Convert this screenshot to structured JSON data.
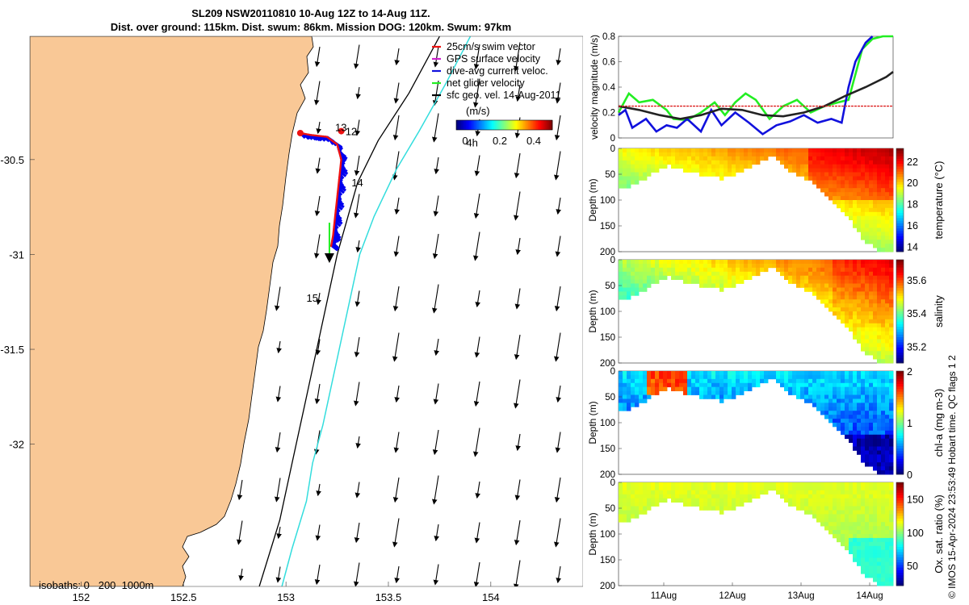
{
  "title": {
    "line1": "SL209 NSW20110810 10-Aug 12Z to 14-Aug 11Z.",
    "line2": "Dist. over ground: 115km. Dist. swum: 86km. Mission DOG: 120km. Swum: 97km"
  },
  "credit": "© IMOS 15-Apr-2024 23:53:49 Hobart time. QC flags 1  2",
  "colors": {
    "land": "#f9c896",
    "track": "#0000ee",
    "track_red": "#ee1111",
    "isobath_200": "#000000",
    "isobath_1000": "#33dddd",
    "series_green": "#22ee22",
    "series_blue": "#1111dd",
    "series_black": "#222222",
    "series_red": "#dd2222"
  },
  "chart_data": [
    {
      "type": "scatter",
      "name": "map",
      "xlim": [
        151.75,
        154.45
      ],
      "ylim": [
        -32.75,
        -29.85
      ],
      "x_ticks": [
        152,
        152.5,
        153,
        153.5,
        154
      ],
      "x_tick_labels": [
        "152",
        "152.5",
        "153",
        "153.5",
        "154"
      ],
      "y_ticks": [
        -30.5,
        -31,
        -31.5,
        -32
      ],
      "y_tick_labels": [
        "-30.5",
        "-31",
        "-31.5",
        "-32"
      ],
      "legend": {
        "placement": "top-right",
        "entries": [
          {
            "label": "25cm/s swim vector",
            "color": "#ee1111"
          },
          {
            "label": "GPS surface velocity",
            "color": "#cc22cc"
          },
          {
            "label": "dive-avg current veloc.",
            "color": "#1111dd"
          },
          {
            "label": "net glider velocity",
            "color": "#22ee22"
          },
          {
            "label": "sfc geo. vel. 14-Aug-2011",
            "color": "#000000"
          }
        ]
      },
      "colorbar": {
        "label": "(m/s)",
        "ticks": [
          "0",
          "0.2",
          "0.4"
        ],
        "range": [
          0,
          0.5
        ]
      },
      "isobaths_label": "isobaths: 0   200  1000m",
      "annotations": [
        {
          "text": "4h",
          "lon": 153.88,
          "lat": -30.43
        },
        {
          "text": "13",
          "lon": 153.24,
          "lat": -30.35
        },
        {
          "text": "12",
          "lon": 153.29,
          "lat": -30.37
        },
        {
          "text": "14",
          "lon": 153.32,
          "lat": -30.64
        },
        {
          "text": "15",
          "lon": 153.1,
          "lat": -31.25
        }
      ],
      "glider_track": [
        [
          153.07,
          -30.36
        ],
        [
          153.12,
          -30.37
        ],
        [
          153.2,
          -30.38
        ],
        [
          153.25,
          -30.42
        ],
        [
          153.27,
          -30.5
        ],
        [
          153.26,
          -30.6
        ],
        [
          153.25,
          -30.7
        ],
        [
          153.24,
          -30.8
        ],
        [
          153.23,
          -30.9
        ],
        [
          153.22,
          -30.96
        ]
      ],
      "isobath_200": [
        [
          153.75,
          -29.85
        ],
        [
          153.6,
          -30.15
        ],
        [
          153.45,
          -30.4
        ],
        [
          153.35,
          -30.62
        ],
        [
          153.25,
          -31.0
        ],
        [
          153.17,
          -31.4
        ],
        [
          153.09,
          -31.8
        ],
        [
          153.03,
          -32.1
        ],
        [
          152.97,
          -32.4
        ],
        [
          152.87,
          -32.75
        ]
      ],
      "isobath_1000": [
        [
          153.9,
          -29.85
        ],
        [
          153.78,
          -30.1
        ],
        [
          153.65,
          -30.35
        ],
        [
          153.54,
          -30.55
        ],
        [
          153.43,
          -30.8
        ],
        [
          153.36,
          -31.0
        ],
        [
          153.3,
          -31.3
        ],
        [
          153.24,
          -31.6
        ],
        [
          153.18,
          -31.9
        ],
        [
          153.13,
          -32.1
        ],
        [
          153.1,
          -32.3
        ],
        [
          153.03,
          -32.55
        ],
        [
          152.98,
          -32.75
        ]
      ]
    },
    {
      "type": "line",
      "name": "velocity",
      "ylabel": "velocity magnitude (m/s)",
      "ylim": [
        0,
        0.8
      ],
      "y_ticks": [
        "0",
        "0.2",
        "0.4",
        "0.6",
        "0.8"
      ],
      "xlim": [
        0,
        4
      ],
      "series": [
        {
          "color": "#22ee22",
          "x": [
            0,
            0.15,
            0.3,
            0.5,
            0.7,
            0.8,
            1.0,
            1.2,
            1.4,
            1.55,
            1.7,
            1.85,
            2.0,
            2.2,
            2.4,
            2.6,
            2.8,
            3.0,
            3.2,
            3.35,
            3.45,
            3.55,
            3.7,
            3.85,
            4.0
          ],
          "y": [
            0.2,
            0.35,
            0.28,
            0.3,
            0.22,
            0.15,
            0.14,
            0.2,
            0.28,
            0.18,
            0.28,
            0.35,
            0.3,
            0.15,
            0.25,
            0.3,
            0.2,
            0.25,
            0.28,
            0.3,
            0.5,
            0.7,
            0.78,
            0.8,
            0.8
          ]
        },
        {
          "color": "#1111dd",
          "x": [
            0,
            0.1,
            0.2,
            0.4,
            0.55,
            0.7,
            0.85,
            1.0,
            1.2,
            1.35,
            1.5,
            1.7,
            1.9,
            2.1,
            2.3,
            2.5,
            2.7,
            2.9,
            3.1,
            3.25,
            3.35,
            3.45,
            3.6,
            3.7
          ],
          "y": [
            0.18,
            0.22,
            0.08,
            0.15,
            0.05,
            0.1,
            0.08,
            0.15,
            0.05,
            0.22,
            0.1,
            0.2,
            0.12,
            0.03,
            0.1,
            0.13,
            0.18,
            0.12,
            0.15,
            0.12,
            0.4,
            0.6,
            0.75,
            0.8
          ]
        },
        {
          "color": "#222222",
          "x": [
            0,
            0.3,
            0.6,
            0.9,
            1.2,
            1.5,
            1.8,
            2.1,
            2.4,
            2.7,
            3.0,
            3.3,
            3.6,
            3.9,
            4.0
          ],
          "y": [
            0.25,
            0.22,
            0.18,
            0.15,
            0.18,
            0.23,
            0.22,
            0.18,
            0.17,
            0.2,
            0.25,
            0.33,
            0.4,
            0.48,
            0.52
          ]
        },
        {
          "color": "#dd2222",
          "x": [
            0,
            4
          ],
          "y": [
            0.25,
            0.25
          ]
        }
      ]
    },
    {
      "type": "heatmap",
      "name": "temperature",
      "ylabel": "Depth (m)",
      "yticks": [
        "0",
        "50",
        "100",
        "150",
        "200"
      ],
      "colorbar_label": "temperature (°C)",
      "colorbar_ticks": [
        "22",
        "20",
        "18",
        "16",
        "14"
      ],
      "colorbar_range": [
        13.5,
        23.2
      ]
    },
    {
      "type": "heatmap",
      "name": "salinity",
      "ylabel": "Depth (m)",
      "yticks": [
        "0",
        "50",
        "100",
        "150",
        "200"
      ],
      "colorbar_label": "salinity",
      "colorbar_ticks": [
        "35.6",
        "35.4",
        "35.2"
      ],
      "colorbar_range": [
        35.1,
        35.72
      ]
    },
    {
      "type": "heatmap",
      "name": "chlorophyll",
      "ylabel": "Depth (m)",
      "yticks": [
        "0",
        "50",
        "100",
        "150",
        "200"
      ],
      "colorbar_label": "chl-a (mg m-3)",
      "colorbar_ticks": [
        "2",
        "1",
        "0"
      ],
      "colorbar_range": [
        0,
        2
      ]
    },
    {
      "type": "heatmap",
      "name": "oxygen",
      "ylabel": "Depth (m)",
      "yticks": [
        "0",
        "50",
        "100",
        "150",
        "200"
      ],
      "xticks": [
        "11Aug",
        "12Aug",
        "13Aug",
        "14Aug"
      ],
      "colorbar_label": "Ox. sat. ratio (%)",
      "colorbar_ticks": [
        "150",
        "100",
        "50"
      ],
      "colorbar_range": [
        20,
        175
      ]
    }
  ]
}
